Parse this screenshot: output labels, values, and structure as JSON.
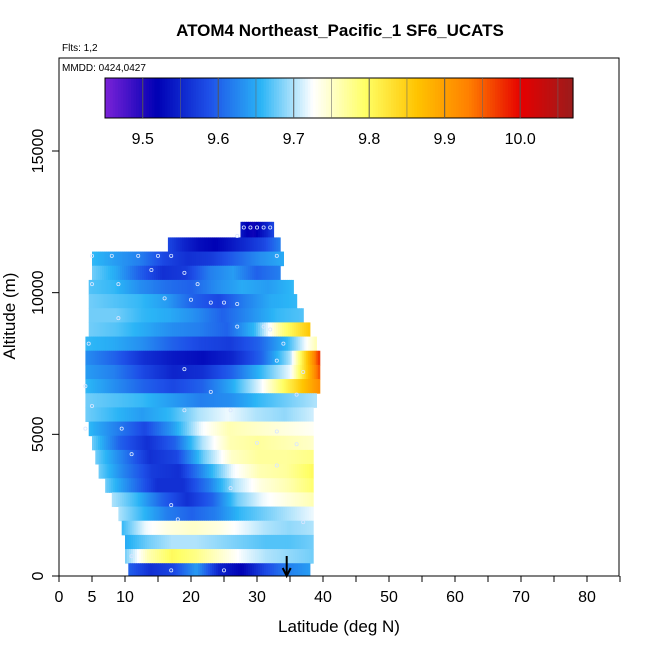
{
  "chart_data": {
    "type": "heatmap",
    "title": "ATOM4 Northeast_Pacific_1 SF6_UCATS",
    "flights_label": "Flts: 1,2",
    "dates_label": "MMDD: 0424,0427",
    "xlabel": "Latitude (deg N)",
    "ylabel": "Altitude (m)",
    "xlim": [
      0,
      85
    ],
    "ylim": [
      0,
      18000
    ],
    "x_ticks": [
      0,
      5,
      10,
      20,
      30,
      40,
      50,
      60,
      70,
      80
    ],
    "y_ticks": [
      0,
      5000,
      10000,
      15000
    ],
    "colorbar": {
      "range": [
        9.45,
        10.07
      ],
      "ticks": [
        "9.5",
        "9.6",
        "9.7",
        "9.8",
        "9.9",
        "10.0"
      ],
      "colors": [
        "#7b22d8",
        "#0000b4",
        "#1e50e8",
        "#2ab4f6",
        "#ffffff",
        "#ffff66",
        "#ffc400",
        "#ff7f00",
        "#e60000",
        "#9b1c1c"
      ]
    },
    "marker": {
      "type": "arrow",
      "x": 34.5,
      "label": ""
    },
    "rows": [
      {
        "alt": [
          11900,
          12500
        ],
        "lat": [
          27.5,
          32.5
        ],
        "values": [
          9.54,
          9.52,
          9.51,
          9.53,
          9.55,
          9.58
        ]
      },
      {
        "alt": [
          11400,
          11950
        ],
        "lat": [
          16.5,
          33.5
        ],
        "values": [
          9.58,
          9.55,
          9.53,
          9.52,
          9.54,
          9.56,
          9.58,
          9.62
        ]
      },
      {
        "alt": [
          10950,
          11450
        ],
        "lat": [
          5,
          34
        ],
        "values": [
          9.66,
          9.64,
          9.62,
          9.58,
          9.56,
          9.57,
          9.6,
          9.63,
          9.65
        ]
      },
      {
        "alt": [
          10450,
          10950
        ],
        "lat": [
          5,
          33.5
        ],
        "values": [
          9.68,
          9.65,
          9.6,
          9.56,
          9.57,
          9.62,
          9.64,
          9.6,
          9.62
        ]
      },
      {
        "alt": [
          9950,
          10450
        ],
        "lat": [
          4.5,
          35.5
        ],
        "values": [
          9.67,
          9.66,
          9.63,
          9.61,
          9.6,
          9.63,
          9.65,
          9.64,
          9.66
        ]
      },
      {
        "alt": [
          9450,
          9950
        ],
        "lat": [
          4.5,
          36
        ],
        "values": [
          9.68,
          9.67,
          9.66,
          9.64,
          9.6,
          9.58,
          9.62,
          9.65,
          9.66
        ]
      },
      {
        "alt": [
          8950,
          9450
        ],
        "lat": [
          4.5,
          37
        ],
        "values": [
          9.68,
          9.68,
          9.66,
          9.65,
          9.63,
          9.6,
          9.63,
          9.66,
          9.67
        ]
      },
      {
        "alt": [
          8450,
          8950
        ],
        "lat": [
          4.5,
          38
        ],
        "values": [
          9.68,
          9.67,
          9.65,
          9.63,
          9.62,
          9.6,
          9.66,
          9.78,
          9.86
        ]
      },
      {
        "alt": [
          7950,
          8450
        ],
        "lat": [
          4,
          39
        ],
        "values": [
          9.66,
          9.65,
          9.63,
          9.6,
          9.58,
          9.57,
          9.6,
          9.66,
          9.76
        ]
      },
      {
        "alt": [
          7450,
          7950
        ],
        "lat": [
          4,
          39.5
        ],
        "values": [
          9.63,
          9.6,
          9.56,
          9.54,
          9.53,
          9.55,
          9.6,
          9.7,
          9.98
        ]
      },
      {
        "alt": [
          6950,
          7450
        ],
        "lat": [
          4,
          39.5
        ],
        "values": [
          9.64,
          9.62,
          9.58,
          9.55,
          9.56,
          9.6,
          9.66,
          9.72,
          9.96
        ]
      },
      {
        "alt": [
          6450,
          6950
        ],
        "lat": [
          4,
          39.5
        ],
        "values": [
          9.66,
          9.63,
          9.6,
          9.58,
          9.6,
          9.65,
          9.72,
          9.82,
          9.92
        ]
      },
      {
        "alt": [
          5950,
          6450
        ],
        "lat": [
          4,
          39
        ],
        "values": [
          9.68,
          9.67,
          9.66,
          9.64,
          9.62,
          9.63,
          9.66,
          9.68,
          9.7
        ]
      },
      {
        "alt": [
          5450,
          5950
        ],
        "lat": [
          4,
          38.5
        ],
        "values": [
          9.68,
          9.66,
          9.64,
          9.66,
          9.7,
          9.72,
          9.7,
          9.69,
          9.71
        ]
      },
      {
        "alt": [
          4950,
          5450
        ],
        "lat": [
          4.5,
          38.5
        ],
        "values": [
          9.66,
          9.62,
          9.58,
          9.64,
          9.72,
          9.76,
          9.75,
          9.74,
          9.73
        ]
      },
      {
        "alt": [
          4450,
          4950
        ],
        "lat": [
          5,
          38.5
        ],
        "values": [
          9.68,
          9.6,
          9.56,
          9.6,
          9.7,
          9.76,
          9.77,
          9.76,
          9.75
        ]
      },
      {
        "alt": [
          3950,
          4450
        ],
        "lat": [
          5.5,
          38.5
        ],
        "values": [
          9.68,
          9.62,
          9.56,
          9.58,
          9.68,
          9.75,
          9.77,
          9.77,
          9.78
        ]
      },
      {
        "alt": [
          3450,
          3950
        ],
        "lat": [
          6,
          38.5
        ],
        "values": [
          9.68,
          9.62,
          9.57,
          9.56,
          9.64,
          9.72,
          9.76,
          9.77,
          9.8
        ]
      },
      {
        "alt": [
          2950,
          3450
        ],
        "lat": [
          7,
          38.5
        ],
        "values": [
          9.68,
          9.62,
          9.56,
          9.56,
          9.62,
          9.7,
          9.74,
          9.76,
          9.79
        ]
      },
      {
        "alt": [
          2450,
          2950
        ],
        "lat": [
          8,
          38.5
        ],
        "values": [
          9.7,
          9.66,
          9.6,
          9.56,
          9.6,
          9.68,
          9.72,
          9.74,
          9.76
        ]
      },
      {
        "alt": [
          1950,
          2450
        ],
        "lat": [
          9,
          38.5
        ],
        "values": [
          9.7,
          9.66,
          9.62,
          9.6,
          9.62,
          9.66,
          9.68,
          9.7,
          9.72
        ]
      },
      {
        "alt": [
          1450,
          1950
        ],
        "lat": [
          9.5,
          38.5
        ],
        "values": [
          9.66,
          9.72,
          9.74,
          9.75,
          9.74,
          9.72,
          9.7,
          9.69,
          9.7
        ]
      },
      {
        "alt": [
          950,
          1450
        ],
        "lat": [
          10,
          38.5
        ],
        "values": [
          9.65,
          9.68,
          9.7,
          9.7,
          9.69,
          9.68,
          9.67,
          9.67,
          9.68
        ]
      },
      {
        "alt": [
          450,
          950
        ],
        "lat": [
          10,
          38.5
        ],
        "values": [
          9.68,
          9.76,
          9.8,
          9.78,
          9.75,
          9.72,
          9.7,
          9.69,
          9.68
        ]
      },
      {
        "alt": [
          0,
          450
        ],
        "lat": [
          10.5,
          38
        ],
        "values": [
          9.6,
          9.56,
          9.58,
          9.64,
          9.55,
          9.52,
          9.58,
          9.62,
          9.64
        ]
      }
    ],
    "samples": [
      [
        28,
        12300
      ],
      [
        29,
        12300
      ],
      [
        30,
        12300
      ],
      [
        31,
        12300
      ],
      [
        32,
        12300
      ],
      [
        27,
        12000
      ],
      [
        5,
        11300
      ],
      [
        8,
        11300
      ],
      [
        12,
        11300
      ],
      [
        15,
        11300
      ],
      [
        17,
        11300
      ],
      [
        33,
        11300
      ],
      [
        14,
        10800
      ],
      [
        19,
        10700
      ],
      [
        5,
        10300
      ],
      [
        9,
        10300
      ],
      [
        21,
        10300
      ],
      [
        16,
        9800
      ],
      [
        20,
        9750
      ],
      [
        23,
        9650
      ],
      [
        25,
        9650
      ],
      [
        27,
        9600
      ],
      [
        9,
        9100
      ],
      [
        27,
        8800
      ],
      [
        31,
        8800
      ],
      [
        32,
        8700
      ],
      [
        4.5,
        8200
      ],
      [
        34,
        8200
      ],
      [
        33,
        7600
      ],
      [
        19,
        7300
      ],
      [
        37,
        7200
      ],
      [
        4,
        6700
      ],
      [
        23,
        6500
      ],
      [
        36,
        6400
      ],
      [
        5,
        6000
      ],
      [
        19,
        5850
      ],
      [
        26,
        5850
      ],
      [
        4,
        5200
      ],
      [
        9.5,
        5200
      ],
      [
        33,
        5100
      ],
      [
        30,
        4700
      ],
      [
        36,
        4650
      ],
      [
        11,
        4300
      ],
      [
        33,
        3900
      ],
      [
        26,
        3100
      ],
      [
        17,
        2500
      ],
      [
        18,
        2000
      ],
      [
        37,
        1900
      ],
      [
        11,
        700
      ],
      [
        17,
        200
      ],
      [
        25,
        200
      ]
    ]
  }
}
